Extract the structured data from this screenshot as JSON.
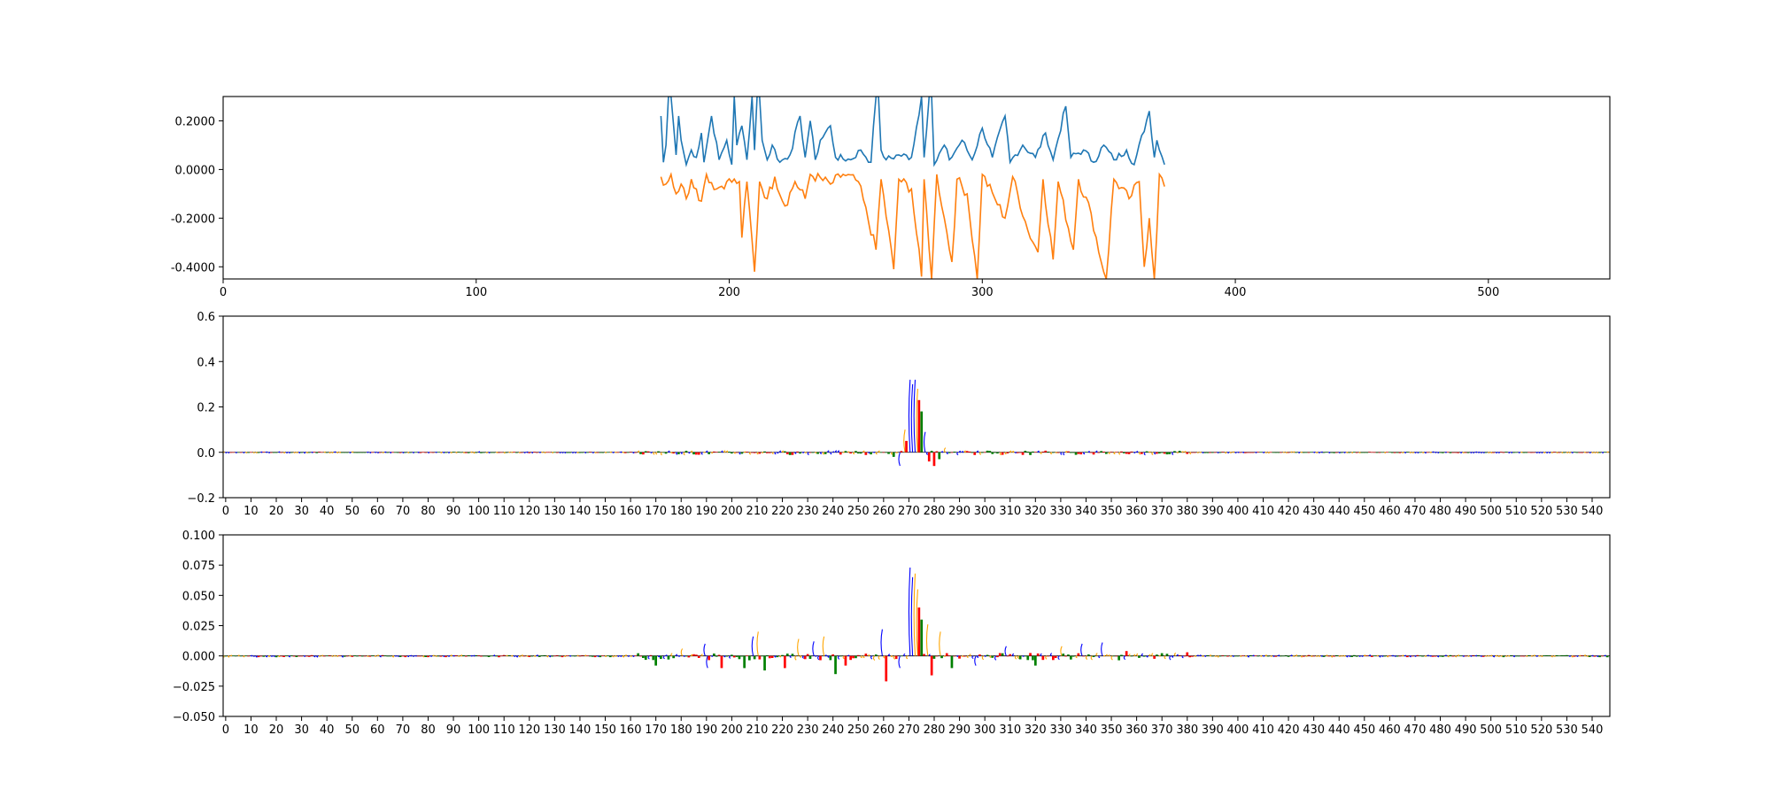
{
  "colors": {
    "series_pos": "#1f77b4",
    "series_neg": "#ff7f0e",
    "base_A": "#008000",
    "base_C": "#0000ff",
    "base_G": "#ffa500",
    "base_T": "#ff0000"
  },
  "chart_data": [
    {
      "type": "line",
      "title": "",
      "xlabel": "",
      "ylabel": "",
      "xlim": [
        0,
        548
      ],
      "ylim": [
        -0.45,
        0.3
      ],
      "grid": false,
      "xticks": [
        0,
        100,
        200,
        300,
        400,
        500
      ],
      "xtick_labels": [
        "0",
        "100",
        "200",
        "300",
        "400",
        "500"
      ],
      "yticks": [
        0.2,
        0.0,
        -0.2,
        -0.4
      ],
      "ytick_labels": [
        "0.2000",
        "0.0000",
        "-0.2000",
        "-0.4000"
      ],
      "x_range": [
        173,
        372
      ],
      "series": [
        {
          "color_key": "series_pos",
          "keypoints": [
            [
              173,
              0.22
            ],
            [
              174,
              0.03
            ],
            [
              175,
              0.1
            ],
            [
              176,
              0.3
            ],
            [
              177,
              0.3
            ],
            [
              178,
              0.18
            ],
            [
              179,
              0.06
            ],
            [
              180,
              0.22
            ],
            [
              181,
              0.12
            ],
            [
              183,
              0.02
            ],
            [
              185,
              0.08
            ],
            [
              187,
              0.05
            ],
            [
              189,
              0.15
            ],
            [
              190,
              0.03
            ],
            [
              193,
              0.22
            ],
            [
              196,
              0.04
            ],
            [
              199,
              0.12
            ],
            [
              201,
              0.02
            ],
            [
              202,
              0.3
            ],
            [
              203,
              0.1
            ],
            [
              205,
              0.18
            ],
            [
              207,
              0.04
            ],
            [
              209,
              0.3
            ],
            [
              210,
              0.08
            ],
            [
              211,
              0.3
            ],
            [
              212,
              0.3
            ],
            [
              213,
              0.12
            ],
            [
              215,
              0.04
            ],
            [
              217,
              0.1
            ],
            [
              220,
              0.03
            ],
            [
              224,
              0.06
            ],
            [
              228,
              0.22
            ],
            [
              230,
              0.05
            ],
            [
              232,
              0.2
            ],
            [
              234,
              0.04
            ],
            [
              236,
              0.12
            ],
            [
              240,
              0.18
            ],
            [
              242,
              0.05
            ],
            [
              248,
              0.04
            ],
            [
              252,
              0.08
            ],
            [
              256,
              0.03
            ],
            [
              258,
              0.3
            ],
            [
              259,
              0.3
            ],
            [
              260,
              0.08
            ],
            [
              262,
              0.04
            ],
            [
              267,
              0.06
            ],
            [
              272,
              0.05
            ],
            [
              276,
              0.3
            ],
            [
              277,
              0.05
            ],
            [
              279,
              0.3
            ],
            [
              280,
              0.3
            ],
            [
              281,
              0.02
            ],
            [
              285,
              0.1
            ],
            [
              287,
              0.04
            ],
            [
              292,
              0.12
            ],
            [
              296,
              0.04
            ],
            [
              300,
              0.17
            ],
            [
              304,
              0.05
            ],
            [
              309,
              0.22
            ],
            [
              311,
              0.03
            ],
            [
              316,
              0.1
            ],
            [
              321,
              0.05
            ],
            [
              325,
              0.15
            ],
            [
              328,
              0.04
            ],
            [
              333,
              0.26
            ],
            [
              335,
              0.05
            ],
            [
              340,
              0.08
            ],
            [
              344,
              0.03
            ],
            [
              348,
              0.1
            ],
            [
              352,
              0.04
            ],
            [
              357,
              0.08
            ],
            [
              360,
              0.02
            ],
            [
              366,
              0.24
            ],
            [
              368,
              0.05
            ],
            [
              369,
              0.12
            ],
            [
              372,
              0.02
            ]
          ]
        },
        {
          "color_key": "series_neg",
          "keypoints": [
            [
              173,
              -0.03
            ],
            [
              175,
              -0.06
            ],
            [
              177,
              -0.02
            ],
            [
              179,
              -0.1
            ],
            [
              181,
              -0.06
            ],
            [
              183,
              -0.12
            ],
            [
              185,
              -0.04
            ],
            [
              187,
              -0.08
            ],
            [
              189,
              -0.13
            ],
            [
              191,
              -0.02
            ],
            [
              195,
              -0.08
            ],
            [
              199,
              -0.05
            ],
            [
              204,
              -0.05
            ],
            [
              205,
              -0.28
            ],
            [
              207,
              -0.05
            ],
            [
              210,
              -0.42
            ],
            [
              212,
              -0.05
            ],
            [
              215,
              -0.12
            ],
            [
              218,
              -0.03
            ],
            [
              222,
              -0.15
            ],
            [
              226,
              -0.05
            ],
            [
              230,
              -0.12
            ],
            [
              232,
              -0.02
            ],
            [
              240,
              -0.06
            ],
            [
              245,
              -0.02
            ],
            [
              251,
              -0.05
            ],
            [
              258,
              -0.33
            ],
            [
              260,
              -0.04
            ],
            [
              265,
              -0.41
            ],
            [
              267,
              -0.04
            ],
            [
              272,
              -0.08
            ],
            [
              276,
              -0.44
            ],
            [
              277,
              -0.04
            ],
            [
              280,
              -0.45
            ],
            [
              282,
              -0.02
            ],
            [
              285,
              -0.2
            ],
            [
              288,
              -0.38
            ],
            [
              290,
              -0.04
            ],
            [
              294,
              -0.1
            ],
            [
              298,
              -0.45
            ],
            [
              300,
              -0.02
            ],
            [
              305,
              -0.12
            ],
            [
              309,
              -0.2
            ],
            [
              312,
              -0.03
            ],
            [
              318,
              -0.25
            ],
            [
              322,
              -0.34
            ],
            [
              324,
              -0.04
            ],
            [
              328,
              -0.37
            ],
            [
              330,
              -0.05
            ],
            [
              336,
              -0.33
            ],
            [
              338,
              -0.04
            ],
            [
              343,
              -0.18
            ],
            [
              347,
              -0.38
            ],
            [
              349,
              -0.45
            ],
            [
              352,
              -0.04
            ],
            [
              358,
              -0.12
            ],
            [
              362,
              -0.05
            ],
            [
              364,
              -0.4
            ],
            [
              366,
              -0.2
            ],
            [
              368,
              -0.45
            ],
            [
              370,
              -0.02
            ],
            [
              372,
              -0.07
            ]
          ]
        }
      ]
    },
    {
      "type": "bar",
      "title": "",
      "xlabel": "",
      "ylabel": "",
      "xlim": [
        -1,
        547
      ],
      "ylim": [
        -0.2,
        0.6
      ],
      "grid": false,
      "xticks": [
        0,
        10,
        20,
        30,
        40,
        50,
        60,
        70,
        80,
        90,
        100,
        110,
        120,
        130,
        140,
        150,
        160,
        170,
        180,
        190,
        200,
        210,
        220,
        230,
        240,
        250,
        260,
        270,
        280,
        290,
        300,
        310,
        320,
        330,
        340,
        350,
        360,
        370,
        380,
        390,
        400,
        410,
        420,
        430,
        440,
        450,
        460,
        470,
        480,
        490,
        500,
        510,
        520,
        530,
        540
      ],
      "yticks": [
        0.6,
        0.4,
        0.2,
        0.0,
        -0.2
      ],
      "ytick_labels": [
        "0.6",
        "0.4",
        "0.2",
        "0.0",
        "−0.2"
      ],
      "positions": [
        -1,
        546
      ],
      "peaks": [
        {
          "x": 264,
          "base": "A",
          "value": -0.02
        },
        {
          "x": 266,
          "base": "C",
          "value": -0.06
        },
        {
          "x": 268,
          "base": "G",
          "value": 0.1
        },
        {
          "x": 269,
          "base": "T",
          "value": 0.05
        },
        {
          "x": 270,
          "base": "C",
          "value": 0.32
        },
        {
          "x": 271,
          "base": "C",
          "value": 0.3
        },
        {
          "x": 272,
          "base": "C",
          "value": 0.32
        },
        {
          "x": 273,
          "base": "G",
          "value": 0.28
        },
        {
          "x": 274,
          "base": "T",
          "value": 0.23
        },
        {
          "x": 275,
          "base": "A",
          "value": 0.18
        },
        {
          "x": 276,
          "base": "C",
          "value": 0.09
        },
        {
          "x": 278,
          "base": "T",
          "value": -0.04
        },
        {
          "x": 280,
          "base": "T",
          "value": -0.06
        },
        {
          "x": 282,
          "base": "A",
          "value": -0.03
        },
        {
          "x": 284,
          "base": "G",
          "value": 0.02
        }
      ]
    },
    {
      "type": "bar",
      "title": "",
      "xlabel": "",
      "ylabel": "",
      "xlim": [
        -1,
        547
      ],
      "ylim": [
        -0.05,
        0.1
      ],
      "grid": false,
      "xticks": [
        0,
        10,
        20,
        30,
        40,
        50,
        60,
        70,
        80,
        90,
        100,
        110,
        120,
        130,
        140,
        150,
        160,
        170,
        180,
        190,
        200,
        210,
        220,
        230,
        240,
        250,
        260,
        270,
        280,
        290,
        300,
        310,
        320,
        330,
        340,
        350,
        360,
        370,
        380,
        390,
        400,
        410,
        420,
        430,
        440,
        450,
        460,
        470,
        480,
        490,
        500,
        510,
        520,
        530,
        540
      ],
      "yticks": [
        0.1,
        0.075,
        0.05,
        0.025,
        0.0,
        -0.025,
        -0.05
      ],
      "ytick_labels": [
        "0.100",
        "0.075",
        "0.050",
        "0.025",
        "0.000",
        "−0.025",
        "−0.050"
      ],
      "positions": [
        -1,
        546
      ],
      "peaks": [
        {
          "x": 170,
          "base": "A",
          "value": -0.008
        },
        {
          "x": 180,
          "base": "G",
          "value": 0.006
        },
        {
          "x": 189,
          "base": "C",
          "value": 0.01
        },
        {
          "x": 190,
          "base": "C",
          "value": -0.01
        },
        {
          "x": 196,
          "base": "T",
          "value": -0.01
        },
        {
          "x": 205,
          "base": "A",
          "value": -0.01
        },
        {
          "x": 208,
          "base": "C",
          "value": 0.016
        },
        {
          "x": 210,
          "base": "G",
          "value": 0.02
        },
        {
          "x": 213,
          "base": "A",
          "value": -0.012
        },
        {
          "x": 221,
          "base": "T",
          "value": -0.01
        },
        {
          "x": 226,
          "base": "G",
          "value": 0.014
        },
        {
          "x": 232,
          "base": "C",
          "value": 0.012
        },
        {
          "x": 236,
          "base": "G",
          "value": 0.016
        },
        {
          "x": 241,
          "base": "A",
          "value": -0.015
        },
        {
          "x": 245,
          "base": "T",
          "value": -0.008
        },
        {
          "x": 259,
          "base": "C",
          "value": 0.022
        },
        {
          "x": 261,
          "base": "T",
          "value": -0.021
        },
        {
          "x": 266,
          "base": "C",
          "value": -0.01
        },
        {
          "x": 270,
          "base": "C",
          "value": 0.073
        },
        {
          "x": 271,
          "base": "C",
          "value": 0.065
        },
        {
          "x": 272,
          "base": "G",
          "value": 0.068
        },
        {
          "x": 273,
          "base": "G",
          "value": 0.055
        },
        {
          "x": 274,
          "base": "T",
          "value": 0.04
        },
        {
          "x": 275,
          "base": "A",
          "value": 0.03
        },
        {
          "x": 277,
          "base": "G",
          "value": 0.026
        },
        {
          "x": 279,
          "base": "T",
          "value": -0.016
        },
        {
          "x": 282,
          "base": "G",
          "value": 0.02
        },
        {
          "x": 287,
          "base": "A",
          "value": -0.01
        },
        {
          "x": 296,
          "base": "C",
          "value": -0.008
        },
        {
          "x": 308,
          "base": "C",
          "value": 0.008
        },
        {
          "x": 320,
          "base": "A",
          "value": -0.008
        },
        {
          "x": 330,
          "base": "G",
          "value": 0.008
        },
        {
          "x": 338,
          "base": "C",
          "value": 0.01
        },
        {
          "x": 346,
          "base": "C",
          "value": 0.011
        },
        {
          "x": 356,
          "base": "T",
          "value": 0.004
        },
        {
          "x": 380,
          "base": "T",
          "value": 0.003
        }
      ]
    }
  ]
}
